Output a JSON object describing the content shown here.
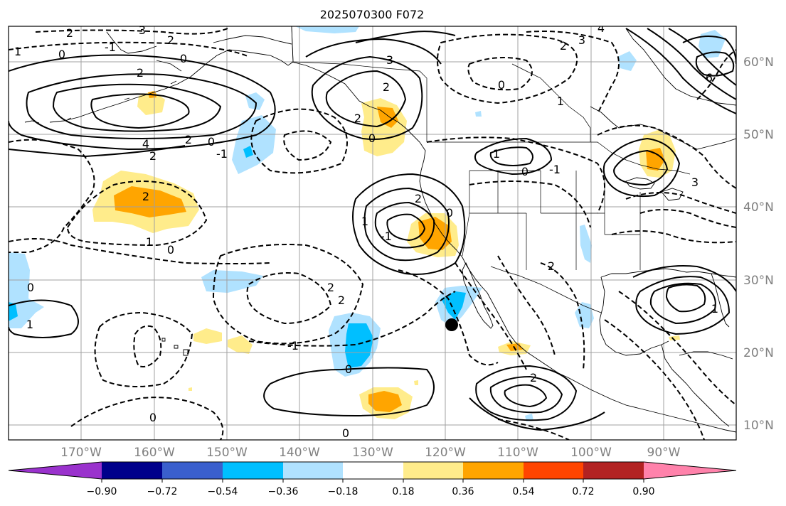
{
  "title": "2025070300 F072",
  "lat_labels": [
    "60°N",
    "50°N",
    "40°N",
    "30°N",
    "20°N",
    "10°N"
  ],
  "lon_labels": [
    "170°W",
    "160°W",
    "150°W",
    "140°W",
    "130°W",
    "120°W",
    "110°W",
    "100°W",
    "90°W"
  ],
  "colorbar": {
    "ticks": [
      "−0.90",
      "−0.72",
      "−0.54",
      "−0.36",
      "−0.18",
      "0.18",
      "0.36",
      "0.54",
      "0.72",
      "0.90"
    ],
    "colors": [
      "#9a32cd",
      "#00008b",
      "#3a5fcd",
      "#00bfff",
      "#b0e2ff",
      "#ffffff",
      "#ffec8b",
      "#ffa500",
      "#ff4500",
      "#b22222",
      "#ff82ab"
    ]
  },
  "contour_labels": [
    "2",
    "3",
    "0",
    "2",
    "1",
    "2",
    "-1",
    "2",
    "0",
    "4",
    "2",
    "-1",
    "2",
    "0",
    "1",
    "0",
    "3",
    "2",
    "0",
    "2",
    "1",
    "0",
    "-1",
    "2",
    "0",
    "2",
    "1",
    "-1",
    "0",
    "2",
    "2",
    "2",
    "0",
    "2",
    "1",
    "0",
    "-1",
    "0",
    "6",
    "3",
    "1",
    "4",
    "3",
    "1",
    "0"
  ],
  "marker": "station-dot"
}
